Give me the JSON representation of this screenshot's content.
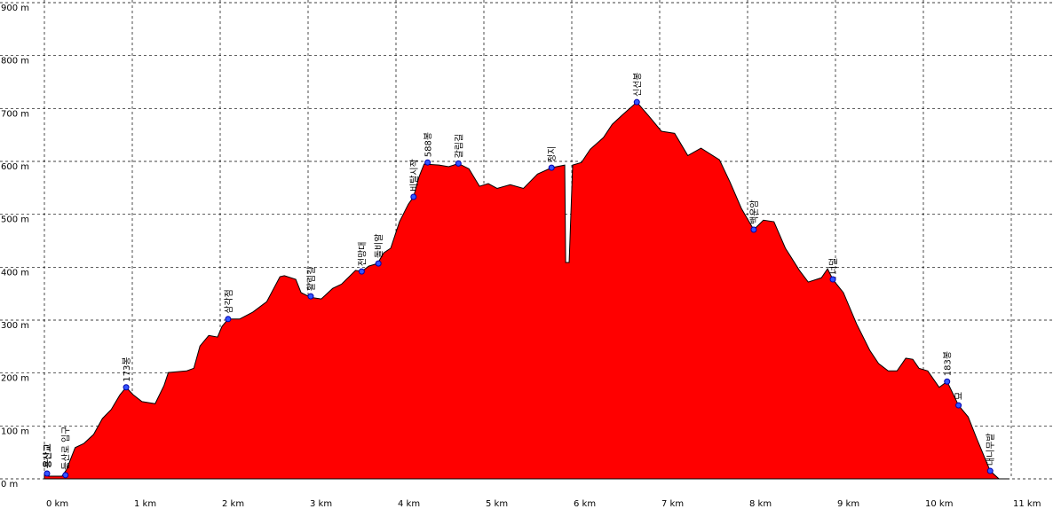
{
  "chart_data": {
    "type": "area",
    "color": "#ff0000",
    "grid": true,
    "x": [
      0,
      0.05,
      0.2,
      0.25,
      0.35,
      0.45,
      0.56,
      0.66,
      0.76,
      0.86,
      0.93,
      1.01,
      1.11,
      1.26,
      1.36,
      1.41,
      1.62,
      1.7,
      1.77,
      1.87,
      1.97,
      2.02,
      2.09,
      2.22,
      2.37,
      2.53,
      2.68,
      2.73,
      2.86,
      2.92,
      3.03,
      3.15,
      3.28,
      3.38,
      3.54,
      3.61,
      3.69,
      3.79,
      3.86,
      3.94,
      4.04,
      4.14,
      4.2,
      4.26,
      4.32,
      4.49,
      4.6,
      4.71,
      4.83,
      4.95,
      5.05,
      5.15,
      5.3,
      5.45,
      5.61,
      5.77,
      5.92,
      5.93,
      5.97,
      6.01,
      6.11,
      6.21,
      6.36,
      6.46,
      6.57,
      6.74,
      6.87,
      7.02,
      7.17,
      7.32,
      7.47,
      7.68,
      7.8,
      7.93,
      8.07,
      8.18,
      8.3,
      8.43,
      8.59,
      8.69,
      8.84,
      8.91,
      8.97,
      9.09,
      9.24,
      9.39,
      9.49,
      9.6,
      9.7,
      9.8,
      9.88,
      9.95,
      10.05,
      10.18,
      10.27,
      10.4,
      10.51,
      10.61,
      10.76,
      10.86,
      10.98
    ],
    "values": [
      8,
      5,
      5,
      17,
      59,
      67,
      84,
      114,
      131,
      159,
      173,
      159,
      146,
      142,
      176,
      201,
      204,
      209,
      251,
      271,
      268,
      288,
      302,
      302,
      315,
      335,
      382,
      384,
      377,
      352,
      343,
      340,
      360,
      368,
      394,
      392,
      402,
      407,
      427,
      436,
      486,
      519,
      533,
      570,
      595,
      593,
      590,
      596,
      586,
      553,
      558,
      549,
      556,
      549,
      576,
      588,
      593,
      409,
      409,
      593,
      598,
      623,
      645,
      670,
      687,
      712,
      687,
      657,
      653,
      611,
      625,
      603,
      561,
      511,
      471,
      489,
      486,
      436,
      394,
      372,
      380,
      397,
      377,
      352,
      293,
      243,
      218,
      204,
      204,
      228,
      226,
      209,
      204,
      173,
      184,
      139,
      117,
      75,
      15,
      0,
      0
    ],
    "xlim": [
      0,
      11.1
    ],
    "ylim": [
      0,
      900
    ],
    "xticks": [
      {
        "value": 0,
        "label": "0 km"
      },
      {
        "value": 1,
        "label": "1 km"
      },
      {
        "value": 2,
        "label": "2 km"
      },
      {
        "value": 3,
        "label": "3 km"
      },
      {
        "value": 4,
        "label": "4 km"
      },
      {
        "value": 5,
        "label": "5 km"
      },
      {
        "value": 6,
        "label": "6 km"
      },
      {
        "value": 7,
        "label": "7 km"
      },
      {
        "value": 8,
        "label": "8 km"
      },
      {
        "value": 9,
        "label": "9 km"
      },
      {
        "value": 10,
        "label": "10 km"
      },
      {
        "value": 11,
        "label": "11 km"
      }
    ],
    "yticks": [
      {
        "value": 0,
        "label": "0 m"
      },
      {
        "value": 100,
        "label": "100 m"
      },
      {
        "value": 200,
        "label": "200 m"
      },
      {
        "value": 300,
        "label": "300 m"
      },
      {
        "value": 400,
        "label": "400 m"
      },
      {
        "value": 500,
        "label": "500 m"
      },
      {
        "value": 600,
        "label": "600 m"
      },
      {
        "value": 700,
        "label": "700 m"
      },
      {
        "value": 800,
        "label": "800 m"
      },
      {
        "value": 900,
        "label": "900 m"
      }
    ],
    "waypoints": [
      {
        "label": "용산교",
        "x": 0.03,
        "y": 10
      },
      {
        "label": "등산로 입구",
        "x": 0.24,
        "y": 7
      },
      {
        "label": "173봉",
        "x": 0.93,
        "y": 173
      },
      {
        "label": "삼각점",
        "x": 2.09,
        "y": 302
      },
      {
        "label": "활림길",
        "x": 3.03,
        "y": 345
      },
      {
        "label": "전망대",
        "x": 3.61,
        "y": 392
      },
      {
        "label": "돌비알",
        "x": 3.8,
        "y": 407
      },
      {
        "label": "비탈시작",
        "x": 4.2,
        "y": 533
      },
      {
        "label": "588봉",
        "x": 4.36,
        "y": 598
      },
      {
        "label": "갈림길",
        "x": 4.71,
        "y": 596
      },
      {
        "label": "정지",
        "x": 5.77,
        "y": 588
      },
      {
        "label": "신선봉",
        "x": 6.74,
        "y": 712
      },
      {
        "label": "백운암",
        "x": 8.07,
        "y": 471
      },
      {
        "label": "너덜",
        "x": 8.97,
        "y": 377
      },
      {
        "label": "183봉",
        "x": 10.27,
        "y": 184
      },
      {
        "label": "묘",
        "x": 10.4,
        "y": 139
      },
      {
        "label": "대니무밭",
        "x": 10.76,
        "y": 15
      }
    ]
  }
}
